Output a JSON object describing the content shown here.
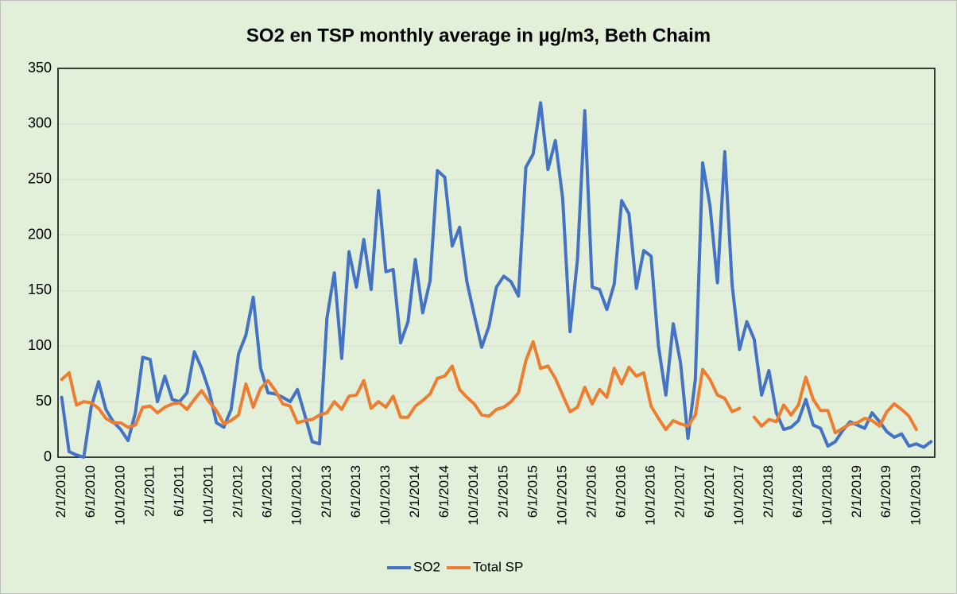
{
  "chart_data": {
    "type": "line",
    "title": "SO2 en TSP monthly average in µg/m3,  Beth Chaim",
    "categories": [
      "2/1/2010",
      null,
      null,
      null,
      "6/1/2010",
      null,
      null,
      null,
      "10/1/2010",
      null,
      null,
      null,
      "2/1/2011",
      null,
      null,
      null,
      "6/1/2011",
      null,
      null,
      null,
      "10/1/2011",
      null,
      null,
      null,
      "2/1/2012",
      null,
      null,
      null,
      "6/1/2012",
      null,
      null,
      null,
      "10/1/2012",
      null,
      null,
      null,
      "2/1/2013",
      null,
      null,
      null,
      "6/1/2013",
      null,
      null,
      null,
      "10/1/2013",
      null,
      null,
      null,
      "2/1/2014",
      null,
      null,
      null,
      "6/1/2014",
      null,
      null,
      null,
      "10/1/2014",
      null,
      null,
      null,
      "2/1/2015",
      null,
      null,
      null,
      "6/1/2015",
      null,
      null,
      null,
      "10/1/2015",
      null,
      null,
      null,
      "2/1/2016",
      null,
      null,
      null,
      "6/1/2016",
      null,
      null,
      null,
      "10/1/2016",
      null,
      null,
      null,
      "2/1/2017",
      null,
      null,
      null,
      "6/1/2017",
      null,
      null,
      null,
      "10/1/2017",
      null,
      null,
      null,
      "2/1/2018",
      null,
      null,
      null,
      "6/1/2018",
      null,
      null,
      null,
      "10/1/2018",
      null,
      null,
      null,
      "2/1/2019",
      null,
      null,
      null,
      "6/1/2019",
      null,
      null,
      null,
      "10/1/2019",
      null,
      null
    ],
    "series": [
      {
        "name": "SO2",
        "color": "#4472c4",
        "values": [
          54,
          5,
          2,
          0,
          45,
          68,
          43,
          32,
          25,
          15,
          40,
          90,
          88,
          50,
          73,
          52,
          50,
          58,
          95,
          80,
          60,
          31,
          27,
          43,
          93,
          110,
          144,
          80,
          58,
          57,
          54,
          50,
          61,
          38,
          14,
          12,
          125,
          166,
          89,
          185,
          153,
          196,
          151,
          240,
          167,
          169,
          103,
          122,
          178,
          130,
          159,
          258,
          252,
          190,
          207,
          158,
          128,
          99,
          118,
          153,
          163,
          158,
          145,
          261,
          273,
          319,
          259,
          285,
          233,
          113,
          178,
          312,
          153,
          151,
          133,
          156,
          231,
          219,
          152,
          186,
          181,
          100,
          56,
          120,
          85,
          17,
          70,
          265,
          226,
          157,
          275,
          155,
          97,
          122,
          106,
          56,
          78,
          40,
          25,
          27,
          33,
          52,
          29,
          26,
          10,
          14,
          24,
          32,
          29,
          26,
          40,
          32,
          23,
          18,
          21,
          10,
          12,
          9,
          14
        ]
      },
      {
        "name": "Total SP",
        "color": "#ed7d31",
        "values": [
          70,
          76,
          47,
          50,
          49,
          44,
          35,
          31,
          31,
          27,
          29,
          45,
          46,
          40,
          45,
          48,
          49,
          43,
          52,
          60,
          50,
          42,
          30,
          33,
          38,
          66,
          45,
          62,
          69,
          60,
          48,
          46,
          31,
          33,
          34,
          38,
          40,
          50,
          43,
          55,
          56,
          69,
          44,
          50,
          45,
          55,
          36,
          36,
          46,
          51,
          57,
          71,
          73,
          82,
          61,
          54,
          48,
          38,
          37,
          43,
          45,
          50,
          58,
          87,
          104,
          80,
          82,
          71,
          56,
          41,
          45,
          63,
          48,
          61,
          54,
          80,
          66,
          81,
          73,
          76,
          46,
          35,
          25,
          33,
          30,
          28,
          38,
          79,
          70,
          56,
          53,
          41,
          44,
          null,
          36,
          28,
          34,
          32,
          47,
          38,
          47,
          72,
          52,
          42,
          42,
          22,
          26,
          30,
          31,
          35,
          33,
          28,
          41,
          48,
          43,
          37,
          25,
          null,
          null
        ]
      }
    ],
    "ylim": [
      0,
      350
    ],
    "yticks": [
      0,
      50,
      100,
      150,
      200,
      250,
      300,
      350
    ],
    "grid": true,
    "legend": "bottom"
  }
}
